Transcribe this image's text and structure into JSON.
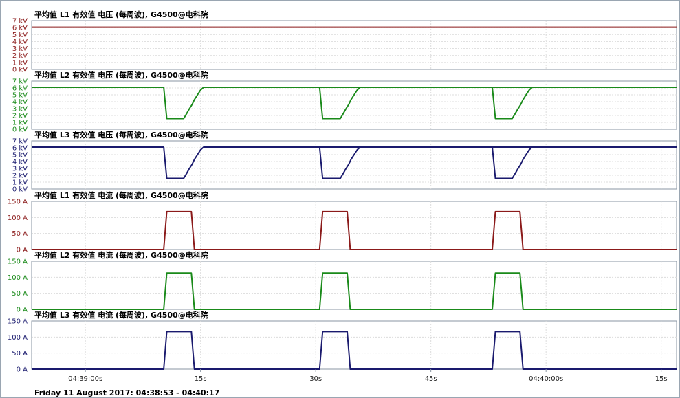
{
  "footer": {
    "time_range": "Friday 11 August 2017: 04:38:53 - 04:40:17"
  },
  "x_axis": {
    "ticks": [
      {
        "t": 7,
        "label": "04:39:00s"
      },
      {
        "t": 22,
        "label": "15s"
      },
      {
        "t": 37,
        "label": "30s"
      },
      {
        "t": 52,
        "label": "45s"
      },
      {
        "t": 67,
        "label": "04:40:00s"
      },
      {
        "t": 82,
        "label": "15s"
      }
    ],
    "range_seconds_from_start": [
      0,
      84
    ]
  },
  "chart_data": [
    {
      "type": "line",
      "title": "平均值 L1 有效值 电压 (每周波), G4500@电科院",
      "ylabel": "",
      "ylim": [
        0,
        7
      ],
      "y_ticks": [
        {
          "v": 7,
          "label": "7 kV"
        },
        {
          "v": 6,
          "label": "6 kV"
        },
        {
          "v": 5,
          "label": "5 kV"
        },
        {
          "v": 4,
          "label": "4 kV"
        },
        {
          "v": 3,
          "label": "3 kV"
        },
        {
          "v": 2,
          "label": "2 kV"
        },
        {
          "v": 1,
          "label": "1 kV"
        },
        {
          "v": 0,
          "label": "0 kV"
        }
      ],
      "grid": true,
      "color": "#8b1a1a",
      "series": [
        {
          "x": [
            0,
            84
          ],
          "values": [
            6.05,
            6.05
          ]
        }
      ]
    },
    {
      "type": "line",
      "title": "平均值 L2 有效值 电压 (每周波), G4500@电科院",
      "ylabel": "",
      "ylim": [
        0,
        7
      ],
      "y_ticks": [
        {
          "v": 7,
          "label": "7 kV"
        },
        {
          "v": 6,
          "label": "6 kV"
        },
        {
          "v": 5,
          "label": "5 kV"
        },
        {
          "v": 4,
          "label": "4 kV"
        },
        {
          "v": 3,
          "label": "3 kV"
        },
        {
          "v": 2,
          "label": "2 kV"
        },
        {
          "v": 1,
          "label": "1 kV"
        },
        {
          "v": 0,
          "label": "0 kV"
        }
      ],
      "grid": true,
      "color": "#1a8a1a",
      "series": [
        {
          "x": [
            0,
            17.2,
            17.6,
            19.8,
            20.2,
            20.5,
            20.9,
            21.2,
            21.6,
            22.0,
            22.4,
            84
          ],
          "values": [
            6.1,
            6.1,
            1.55,
            1.55,
            2.3,
            2.9,
            3.6,
            4.3,
            5.0,
            5.7,
            6.1,
            6.1
          ]
        },
        {
          "x": [
            37.5,
            37.9,
            40.2,
            40.6,
            40.9,
            41.3,
            41.6,
            42.0,
            42.4,
            42.8
          ],
          "values": [
            6.1,
            1.55,
            1.55,
            2.3,
            2.9,
            3.6,
            4.3,
            5.0,
            5.7,
            6.1
          ]
        },
        {
          "x": [
            60.0,
            60.4,
            62.6,
            63.0,
            63.3,
            63.7,
            64.0,
            64.4,
            64.8,
            65.2
          ],
          "values": [
            6.1,
            1.55,
            1.55,
            2.3,
            2.9,
            3.6,
            4.3,
            5.0,
            5.7,
            6.1
          ]
        }
      ]
    },
    {
      "type": "line",
      "title": "平均值 L3 有效值 电压 (每周波), G4500@电科院",
      "ylabel": "",
      "ylim": [
        0,
        7
      ],
      "y_ticks": [
        {
          "v": 7,
          "label": "7 kV"
        },
        {
          "v": 6,
          "label": "6 kV"
        },
        {
          "v": 5,
          "label": "5 kV"
        },
        {
          "v": 4,
          "label": "4 kV"
        },
        {
          "v": 3,
          "label": "3 kV"
        },
        {
          "v": 2,
          "label": "2 kV"
        },
        {
          "v": 1,
          "label": "1 kV"
        },
        {
          "v": 0,
          "label": "0 kV"
        }
      ],
      "grid": true,
      "color": "#1a1a6e",
      "series": [
        {
          "x": [
            0,
            17.2,
            17.6,
            19.8,
            20.2,
            20.5,
            20.9,
            21.2,
            21.6,
            22.0,
            22.4,
            84
          ],
          "values": [
            6.1,
            6.1,
            1.55,
            1.55,
            2.3,
            2.9,
            3.6,
            4.3,
            5.0,
            5.7,
            6.1,
            6.1
          ]
        },
        {
          "x": [
            37.5,
            37.9,
            40.2,
            40.6,
            40.9,
            41.3,
            41.6,
            42.0,
            42.4,
            42.8
          ],
          "values": [
            6.1,
            1.55,
            1.55,
            2.3,
            2.9,
            3.6,
            4.3,
            5.0,
            5.7,
            6.1
          ]
        },
        {
          "x": [
            60.0,
            60.4,
            62.6,
            63.0,
            63.3,
            63.7,
            64.0,
            64.4,
            64.8,
            65.2
          ],
          "values": [
            6.1,
            1.55,
            1.55,
            2.3,
            2.9,
            3.6,
            4.3,
            5.0,
            5.7,
            6.1
          ]
        }
      ]
    },
    {
      "type": "line",
      "title": "平均值 L1 有效值 电流 (每周波), G4500@电科院",
      "ylabel": "",
      "ylim": [
        0,
        150
      ],
      "y_ticks": [
        {
          "v": 150,
          "label": "150 A"
        },
        {
          "v": 100,
          "label": "100 A"
        },
        {
          "v": 50,
          "label": "50 A"
        },
        {
          "v": 0,
          "label": "0 A"
        }
      ],
      "grid": true,
      "color": "#8b1a1a",
      "series": [
        {
          "x": [
            0,
            17.2,
            17.6,
            20.8,
            21.2,
            37.5,
            37.9,
            41.1,
            41.5,
            60.0,
            60.4,
            63.6,
            64.0,
            84
          ],
          "values": [
            0,
            0,
            118,
            118,
            0,
            0,
            118,
            118,
            0,
            0,
            118,
            118,
            0,
            0
          ]
        }
      ]
    },
    {
      "type": "line",
      "title": "平均值 L2 有效值 电流 (每周波), G4500@电科院",
      "ylabel": "",
      "ylim": [
        0,
        150
      ],
      "y_ticks": [
        {
          "v": 150,
          "label": "150 A"
        },
        {
          "v": 100,
          "label": "100 A"
        },
        {
          "v": 50,
          "label": "50 A"
        },
        {
          "v": 0,
          "label": "0 A"
        }
      ],
      "grid": true,
      "color": "#1a8a1a",
      "series": [
        {
          "x": [
            0,
            17.2,
            17.6,
            20.8,
            21.2,
            37.5,
            37.9,
            41.1,
            41.5,
            60.0,
            60.4,
            63.6,
            64.0,
            84
          ],
          "values": [
            0,
            0,
            113,
            113,
            0,
            0,
            113,
            113,
            0,
            0,
            113,
            113,
            0,
            0
          ]
        }
      ]
    },
    {
      "type": "line",
      "title": "平均值 L3 有效值 电流 (每周波), G4500@电科院",
      "ylabel": "",
      "ylim": [
        0,
        150
      ],
      "y_ticks": [
        {
          "v": 150,
          "label": "150 A"
        },
        {
          "v": 100,
          "label": "100 A"
        },
        {
          "v": 50,
          "label": "50 A"
        },
        {
          "v": 0,
          "label": "0 A"
        }
      ],
      "grid": true,
      "color": "#1a1a6e",
      "series": [
        {
          "x": [
            0,
            17.2,
            17.6,
            20.8,
            21.2,
            37.5,
            37.9,
            41.1,
            41.5,
            60.0,
            60.4,
            63.6,
            64.0,
            84
          ],
          "values": [
            0,
            0,
            117,
            117,
            0,
            0,
            117,
            117,
            0,
            0,
            117,
            117,
            0,
            0
          ]
        }
      ]
    }
  ]
}
